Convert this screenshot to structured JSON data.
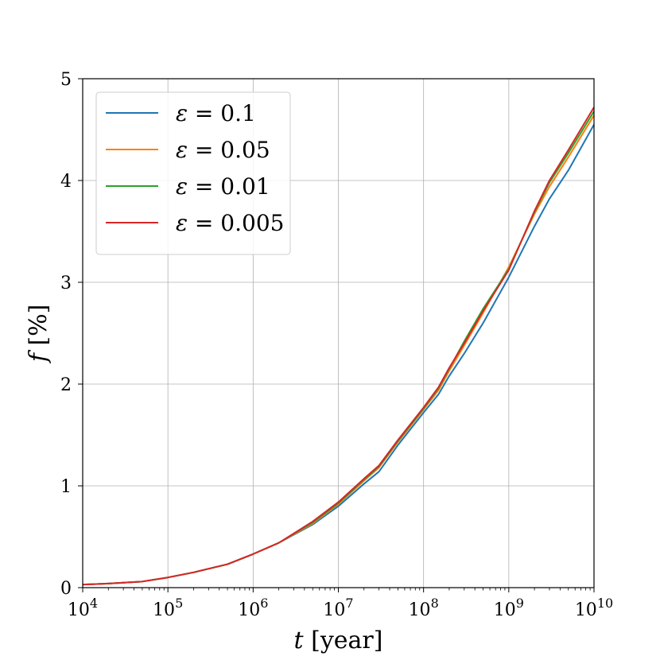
{
  "chart_data": {
    "type": "line",
    "x_scale": "log",
    "xlim": [
      10000,
      10000000000
    ],
    "ylim": [
      0,
      5
    ],
    "grid": true,
    "legend_position": "top-left",
    "xlabel": {
      "var": "t",
      "unit": " [year]"
    },
    "ylabel": {
      "var": "f",
      "unit": " [%]"
    },
    "x_ticks": [
      {
        "value": 10000,
        "base": "10",
        "exp": "4"
      },
      {
        "value": 100000,
        "base": "10",
        "exp": "5"
      },
      {
        "value": 1000000,
        "base": "10",
        "exp": "6"
      },
      {
        "value": 10000000,
        "base": "10",
        "exp": "7"
      },
      {
        "value": 100000000,
        "base": "10",
        "exp": "8"
      },
      {
        "value": 1000000000,
        "base": "10",
        "exp": "9"
      },
      {
        "value": 10000000000,
        "base": "10",
        "exp": "10"
      }
    ],
    "y_ticks": [
      "0",
      "1",
      "2",
      "3",
      "4",
      "5"
    ],
    "series": [
      {
        "name": "ε = 0.1",
        "symbol": "ε",
        "value_text": " = 0.1",
        "color": "#1f77b4",
        "x": [
          10000,
          20000,
          50000,
          100000,
          200000,
          500000,
          1000000,
          2000000,
          5000000,
          10000000,
          20000000,
          30000000,
          50000000,
          100000000,
          150000000,
          200000000,
          300000000,
          500000000,
          1000000000,
          2000000000,
          3000000000,
          5000000000,
          10000000000
        ],
        "y": [
          0.03,
          0.04,
          0.06,
          0.1,
          0.15,
          0.23,
          0.33,
          0.44,
          0.62,
          0.8,
          1.02,
          1.14,
          1.4,
          1.72,
          1.9,
          2.08,
          2.3,
          2.6,
          3.05,
          3.55,
          3.82,
          4.1,
          4.55
        ]
      },
      {
        "name": "ε = 0.05",
        "symbol": "ε",
        "value_text": " = 0.05",
        "color": "#ff7f0e",
        "x": [
          10000,
          20000,
          50000,
          100000,
          200000,
          500000,
          1000000,
          2000000,
          5000000,
          10000000,
          20000000,
          30000000,
          50000000,
          100000000,
          150000000,
          200000000,
          300000000,
          500000000,
          1000000000,
          2000000000,
          3000000000,
          5000000000,
          10000000000
        ],
        "y": [
          0.03,
          0.04,
          0.06,
          0.1,
          0.15,
          0.23,
          0.33,
          0.44,
          0.63,
          0.82,
          1.05,
          1.18,
          1.43,
          1.75,
          1.94,
          2.13,
          2.38,
          2.7,
          3.15,
          3.67,
          3.94,
          4.23,
          4.64
        ]
      },
      {
        "name": "ε = 0.01",
        "symbol": "ε",
        "value_text": " = 0.01",
        "color": "#2ca02c",
        "x": [
          10000,
          20000,
          50000,
          100000,
          200000,
          500000,
          1000000,
          2000000,
          5000000,
          10000000,
          20000000,
          30000000,
          50000000,
          100000000,
          150000000,
          200000000,
          300000000,
          500000000,
          1000000000,
          2000000000,
          3000000000,
          5000000000,
          10000000000
        ],
        "y": [
          0.03,
          0.04,
          0.06,
          0.1,
          0.15,
          0.23,
          0.33,
          0.44,
          0.64,
          0.83,
          1.06,
          1.19,
          1.44,
          1.76,
          1.96,
          2.15,
          2.42,
          2.74,
          3.13,
          3.69,
          3.98,
          4.27,
          4.68
        ]
      },
      {
        "name": "ε = 0.005",
        "symbol": "ε",
        "value_text": " = 0.005",
        "color": "#d62728",
        "x": [
          10000,
          20000,
          50000,
          100000,
          200000,
          500000,
          1000000,
          2000000,
          5000000,
          10000000,
          20000000,
          30000000,
          50000000,
          100000000,
          150000000,
          200000000,
          300000000,
          500000000,
          1000000000,
          2000000000,
          3000000000,
          5000000000,
          10000000000
        ],
        "y": [
          0.03,
          0.04,
          0.06,
          0.1,
          0.15,
          0.23,
          0.33,
          0.44,
          0.65,
          0.84,
          1.07,
          1.2,
          1.45,
          1.77,
          1.97,
          2.16,
          2.4,
          2.72,
          3.12,
          3.7,
          4.0,
          4.3,
          4.72
        ]
      }
    ]
  }
}
